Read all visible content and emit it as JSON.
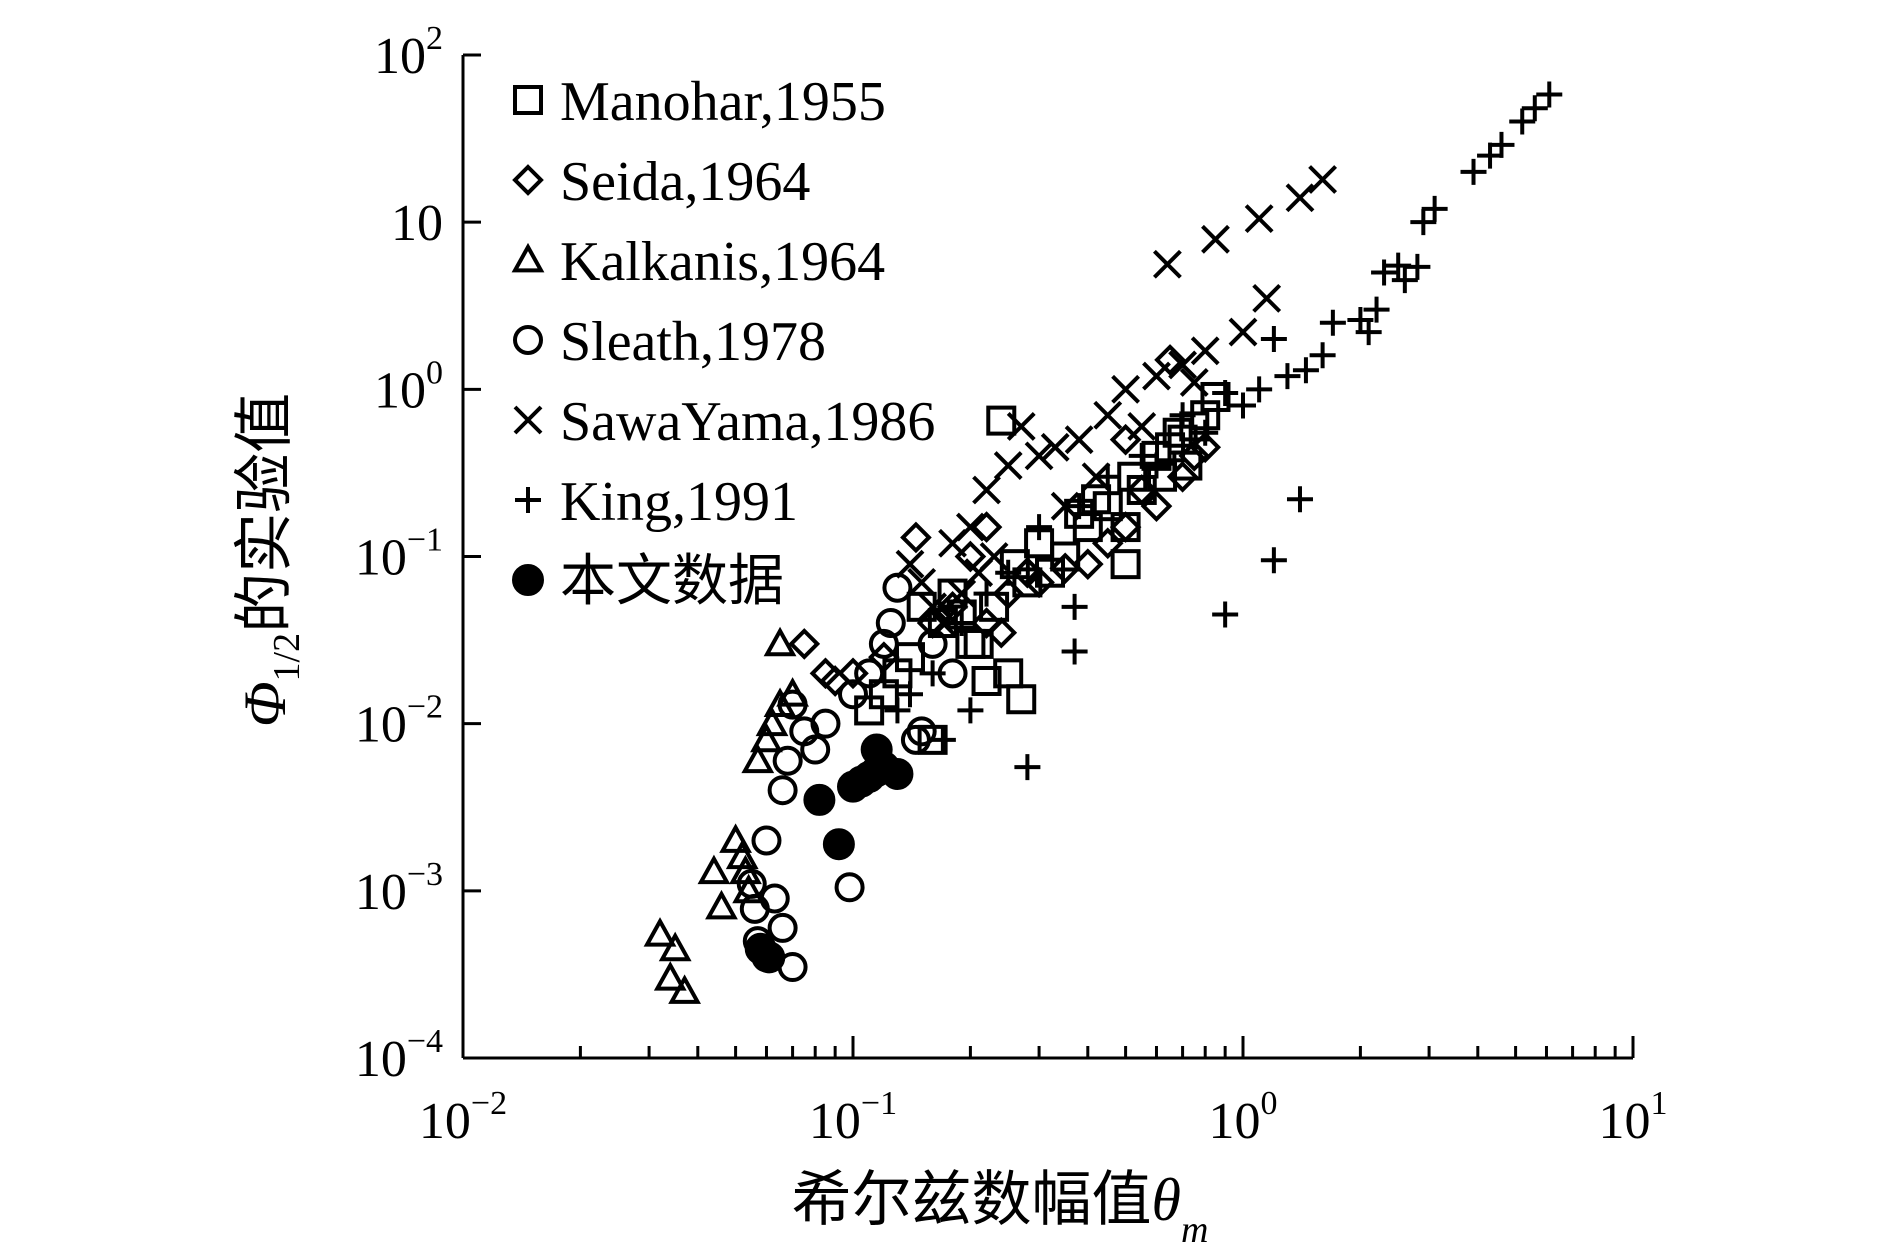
{
  "chart_data": {
    "type": "scatter",
    "xlabel": "希尔兹数幅值",
    "xlabel_symbol": "θ",
    "xlabel_sub": "m",
    "ylabel_symbol": "Φ",
    "ylabel_sub": "1/2",
    "ylabel": "的实验值",
    "xscale": "log",
    "yscale": "log",
    "xlim": [
      0.01,
      10
    ],
    "ylim": [
      0.0001,
      100
    ],
    "grid": false,
    "legend_position": "top-left",
    "x_ticks": [
      {
        "base": "10",
        "exp": "−2"
      },
      {
        "base": "10",
        "exp": "−1"
      },
      {
        "base": "10",
        "exp": "0"
      },
      {
        "base": "10",
        "exp": "1"
      }
    ],
    "y_ticks": [
      {
        "base": "10",
        "exp": "−4"
      },
      {
        "base": "10",
        "exp": "−3"
      },
      {
        "base": "10",
        "exp": "−2"
      },
      {
        "base": "10",
        "exp": "−1"
      },
      {
        "base": "10",
        "exp": "0"
      },
      {
        "base": "10",
        "exp": ""
      },
      {
        "base": "10",
        "exp": "2"
      }
    ],
    "series": [
      {
        "name": "Manohar,1955",
        "marker": "square",
        "points": [
          [
            0.24,
            0.65
          ],
          [
            0.5,
            0.09
          ],
          [
            0.27,
            0.014
          ],
          [
            0.22,
            0.018
          ],
          [
            0.25,
            0.02
          ],
          [
            0.2,
            0.03
          ],
          [
            0.15,
            0.05
          ],
          [
            0.17,
            0.04
          ],
          [
            0.18,
            0.06
          ],
          [
            0.3,
            0.12
          ],
          [
            0.35,
            0.1
          ],
          [
            0.4,
            0.15
          ],
          [
            0.45,
            0.2
          ],
          [
            0.52,
            0.3
          ],
          [
            0.6,
            0.4
          ],
          [
            0.7,
            0.5
          ],
          [
            0.75,
            0.6
          ],
          [
            0.72,
            0.35
          ],
          [
            0.55,
            0.25
          ],
          [
            0.5,
            0.15
          ],
          [
            0.32,
            0.08
          ],
          [
            0.28,
            0.07
          ],
          [
            0.26,
            0.09
          ],
          [
            0.14,
            0.025
          ],
          [
            0.13,
            0.02
          ],
          [
            0.12,
            0.015
          ],
          [
            0.11,
            0.012
          ],
          [
            0.16,
            0.008
          ],
          [
            0.21,
            0.03
          ],
          [
            0.19,
            0.045
          ],
          [
            0.23,
            0.05
          ],
          [
            0.38,
            0.18
          ],
          [
            0.42,
            0.22
          ],
          [
            0.62,
            0.3
          ],
          [
            0.65,
            0.45
          ],
          [
            0.8,
            0.7
          ],
          [
            0.85,
            0.9
          ],
          [
            0.68,
            0.55
          ]
        ]
      },
      {
        "name": "Seida,1964",
        "marker": "diamond",
        "points": [
          [
            0.145,
            0.13
          ],
          [
            0.075,
            0.03
          ],
          [
            0.085,
            0.02
          ],
          [
            0.09,
            0.018
          ],
          [
            0.1,
            0.02
          ],
          [
            0.12,
            0.025
          ],
          [
            0.22,
            0.04
          ],
          [
            0.24,
            0.035
          ],
          [
            0.3,
            0.07
          ],
          [
            0.35,
            0.085
          ],
          [
            0.4,
            0.09
          ],
          [
            0.45,
            0.12
          ],
          [
            0.5,
            0.15
          ],
          [
            0.6,
            0.2
          ],
          [
            0.7,
            0.3
          ],
          [
            0.75,
            0.4
          ],
          [
            0.8,
            0.45
          ],
          [
            0.55,
            0.25
          ],
          [
            0.28,
            0.08
          ],
          [
            0.25,
            0.06
          ],
          [
            0.18,
            0.05
          ],
          [
            0.16,
            0.04
          ],
          [
            0.2,
            0.1
          ],
          [
            0.22,
            0.15
          ],
          [
            0.65,
            1.5
          ],
          [
            0.5,
            0.5
          ]
        ]
      },
      {
        "name": "Kalkanis,1964",
        "marker": "triangle",
        "points": [
          [
            0.032,
            0.00055
          ],
          [
            0.035,
            0.00045
          ],
          [
            0.034,
            0.0003
          ],
          [
            0.037,
            0.00025
          ],
          [
            0.044,
            0.0013
          ],
          [
            0.046,
            0.0008
          ],
          [
            0.05,
            0.002
          ],
          [
            0.052,
            0.0016
          ],
          [
            0.053,
            0.0013
          ],
          [
            0.054,
            0.001
          ],
          [
            0.057,
            0.006
          ],
          [
            0.06,
            0.008
          ],
          [
            0.062,
            0.01
          ],
          [
            0.065,
            0.013
          ],
          [
            0.07,
            0.015
          ],
          [
            0.065,
            0.03
          ]
        ]
      },
      {
        "name": "Sleath,1978",
        "marker": "circle",
        "points": [
          [
            0.057,
            0.0005
          ],
          [
            0.06,
            0.0004
          ],
          [
            0.063,
            0.0009
          ],
          [
            0.066,
            0.0006
          ],
          [
            0.07,
            0.00035
          ],
          [
            0.055,
            0.0011
          ],
          [
            0.056,
            0.00078
          ],
          [
            0.06,
            0.002
          ],
          [
            0.066,
            0.004
          ],
          [
            0.068,
            0.006
          ],
          [
            0.07,
            0.013
          ],
          [
            0.075,
            0.009
          ],
          [
            0.08,
            0.007
          ],
          [
            0.085,
            0.01
          ],
          [
            0.098,
            0.00105
          ],
          [
            0.1,
            0.015
          ],
          [
            0.11,
            0.02
          ],
          [
            0.12,
            0.03
          ],
          [
            0.125,
            0.04
          ],
          [
            0.13,
            0.065
          ],
          [
            0.145,
            0.008
          ],
          [
            0.15,
            0.009
          ],
          [
            0.16,
            0.03
          ],
          [
            0.18,
            0.02
          ]
        ]
      },
      {
        "name": "SawaYama,1986",
        "marker": "x",
        "points": [
          [
            0.64,
            5.6
          ],
          [
            0.85,
            7.9
          ],
          [
            1.1,
            10.5
          ],
          [
            1.4,
            14
          ],
          [
            1.6,
            18
          ],
          [
            1.15,
            3.5
          ],
          [
            1.0,
            2.2
          ],
          [
            0.8,
            1.7
          ],
          [
            0.7,
            1.4
          ],
          [
            0.6,
            1.2
          ],
          [
            0.5,
            1.0
          ],
          [
            0.45,
            0.7
          ],
          [
            0.38,
            0.5
          ],
          [
            0.33,
            0.45
          ],
          [
            0.3,
            0.4
          ],
          [
            0.27,
            0.6
          ],
          [
            0.25,
            0.35
          ],
          [
            0.22,
            0.25
          ],
          [
            0.2,
            0.15
          ],
          [
            0.18,
            0.12
          ],
          [
            0.15,
            0.07
          ],
          [
            0.14,
            0.09
          ],
          [
            0.16,
            0.05
          ],
          [
            0.17,
            0.04
          ],
          [
            0.19,
            0.06
          ],
          [
            0.21,
            0.08
          ],
          [
            0.23,
            0.1
          ],
          [
            0.35,
            0.2
          ],
          [
            0.42,
            0.3
          ],
          [
            0.55,
            0.6
          ],
          [
            0.75,
            1.1
          ]
        ]
      },
      {
        "name": "King,1991",
        "marker": "plus",
        "points": [
          [
            0.28,
            0.0055
          ],
          [
            0.17,
            0.008
          ],
          [
            0.2,
            0.012
          ],
          [
            0.37,
            0.027
          ],
          [
            0.37,
            0.05
          ],
          [
            0.9,
            0.045
          ],
          [
            1.2,
            0.095
          ],
          [
            1.4,
            0.22
          ],
          [
            1.3,
            1.2
          ],
          [
            1.45,
            1.3
          ],
          [
            1.6,
            1.6
          ],
          [
            1.7,
            2.5
          ],
          [
            1.2,
            2.0
          ],
          [
            2.0,
            2.6
          ],
          [
            2.2,
            3.0
          ],
          [
            2.3,
            5.0
          ],
          [
            2.5,
            5.5
          ],
          [
            2.8,
            5.4
          ],
          [
            2.9,
            10
          ],
          [
            3.1,
            12
          ],
          [
            3.9,
            20
          ],
          [
            4.3,
            25
          ],
          [
            4.6,
            29
          ],
          [
            5.2,
            40
          ],
          [
            5.6,
            48
          ],
          [
            6.1,
            58
          ],
          [
            0.9,
            0.95
          ],
          [
            0.7,
            0.7
          ],
          [
            0.55,
            0.4
          ],
          [
            0.45,
            0.3
          ],
          [
            0.38,
            0.2
          ],
          [
            0.3,
            0.15
          ],
          [
            0.25,
            0.08
          ],
          [
            0.22,
            0.06
          ],
          [
            0.19,
            0.04
          ],
          [
            0.16,
            0.02
          ],
          [
            0.14,
            0.015
          ],
          [
            0.13,
            0.012
          ],
          [
            0.6,
            0.35
          ],
          [
            0.8,
            0.55
          ],
          [
            1.0,
            0.8
          ],
          [
            1.1,
            1.0
          ],
          [
            2.1,
            2.2
          ],
          [
            2.6,
            4.5
          ]
        ]
      },
      {
        "name": "本文数据",
        "marker": "filled-circle",
        "points": [
          [
            0.058,
            0.00045
          ],
          [
            0.061,
            0.0004
          ],
          [
            0.082,
            0.0035
          ],
          [
            0.092,
            0.0019
          ],
          [
            0.1,
            0.0042
          ],
          [
            0.105,
            0.0045
          ],
          [
            0.11,
            0.0048
          ],
          [
            0.115,
            0.0052
          ],
          [
            0.12,
            0.0055
          ],
          [
            0.13,
            0.005
          ],
          [
            0.115,
            0.007
          ]
        ]
      }
    ]
  }
}
